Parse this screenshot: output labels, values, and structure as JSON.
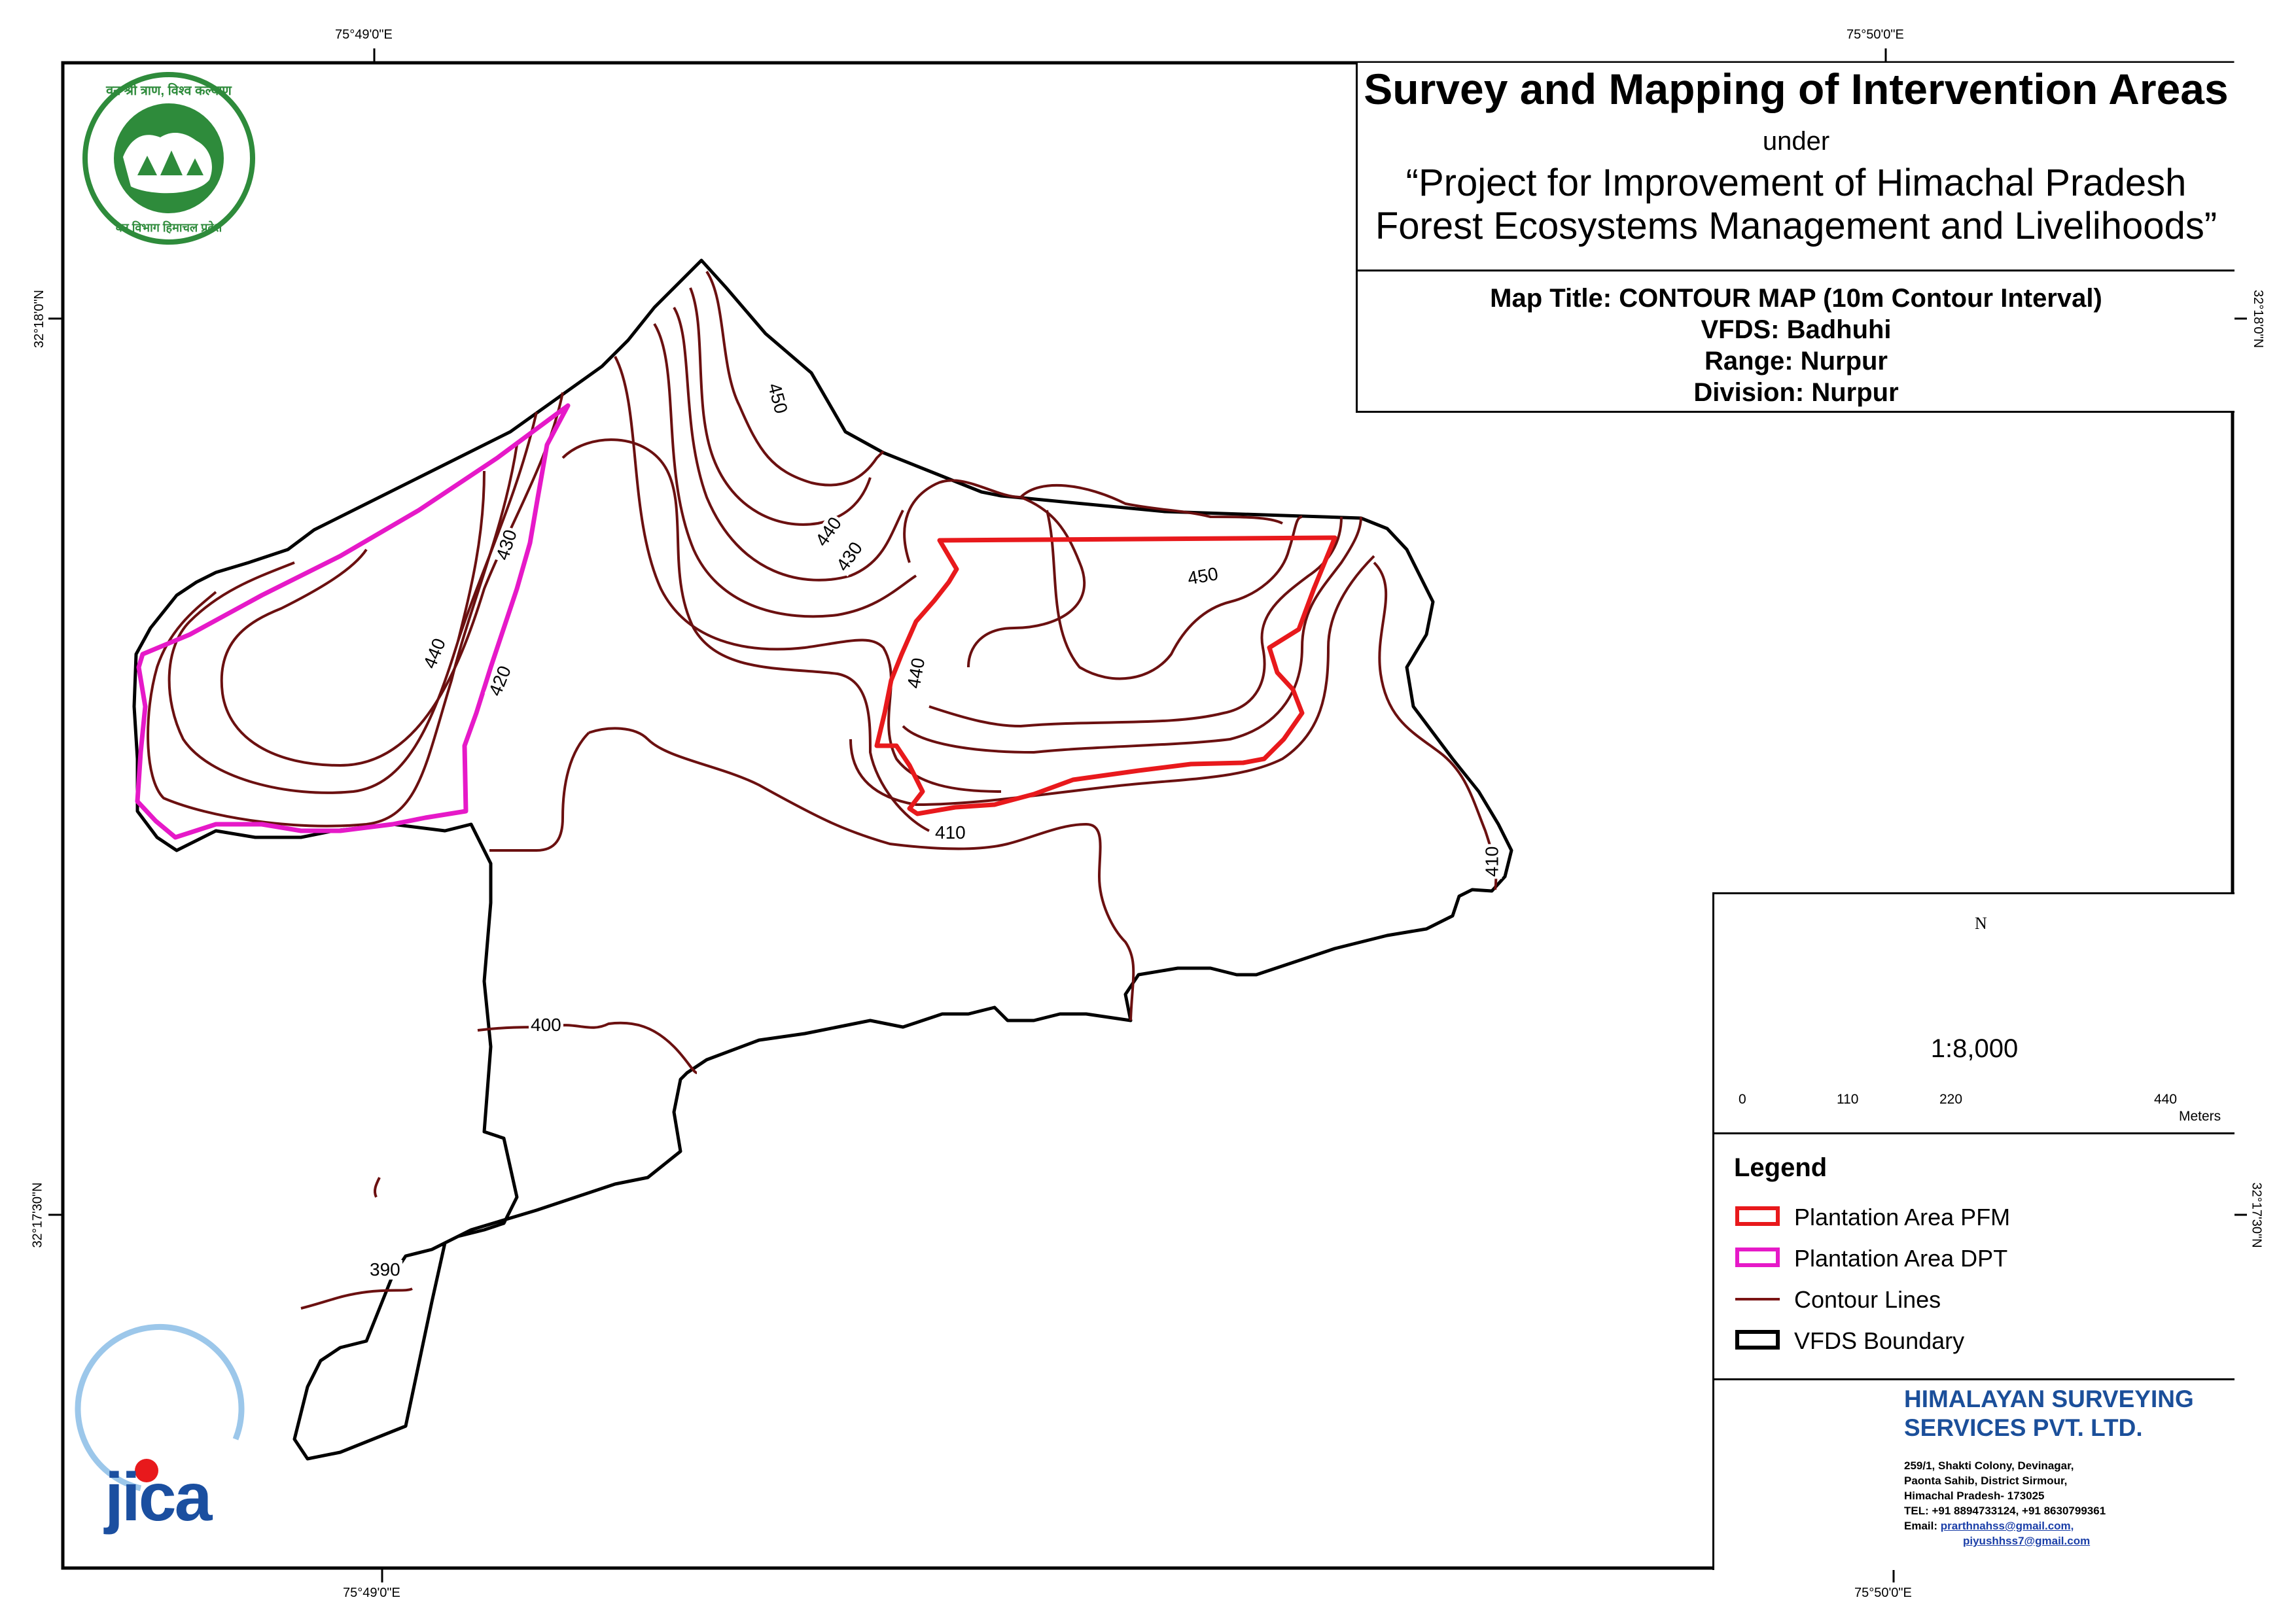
{
  "title": {
    "main": "Survey and Mapping of Intervention Areas",
    "under": "under",
    "project_line1": "“Project for Improvement of Himachal Pradesh",
    "project_line2": "Forest Ecosystems Management and Livelihoods”"
  },
  "map_info": {
    "map_title": "Map Title: CONTOUR MAP (10m Contour Interval)",
    "vfds": "VFDS: Badhuhi",
    "range": "Range: Nurpur",
    "division": "Division: Nurpur"
  },
  "graticule": {
    "top_left": "75°49'0\"E",
    "top_right": "75°50'0\"E",
    "bottom_left": "75°49'0\"E",
    "bottom_right": "75°50'0\"E",
    "left_upper": "32°18'0\"N",
    "left_lower": "32°17'30\"N",
    "right_upper": "32°18'0\"N",
    "right_lower": "32°17'30\"N"
  },
  "contour_labels": [
    "450",
    "440",
    "430",
    "440",
    "420",
    "450",
    "430",
    "440",
    "410",
    "410",
    "400",
    "390"
  ],
  "north_label": "N",
  "scale": {
    "ratio": "1:8,000",
    "ticks": [
      "0",
      "110",
      "220",
      "440"
    ],
    "units": "Meters"
  },
  "legend": {
    "title": "Legend",
    "items": [
      {
        "label": "Plantation Area PFM",
        "color": "#e8191c"
      },
      {
        "label": "Plantation Area DPT",
        "color": "#e619c8"
      },
      {
        "label": "Contour Lines",
        "color": "#7a1414"
      },
      {
        "label": "VFDS Boundary",
        "color": "#000000"
      }
    ]
  },
  "company": {
    "name_line1": "HIMALAYAN SURVEYING",
    "name_line2": "SERVICES PVT. LTD.",
    "address_line1": "259/1, Shakti Colony, Devinagar,",
    "address_line2": "Paonta Sahib, District Sirmour,",
    "address_line3": "Himachal Pradesh- 173025",
    "phone": "TEL: +91 8894733124, +91 8630799361",
    "email_label": "Email:",
    "email1": "prarthnahss@gmail.com,",
    "email2": "piyushhss7@gmail.com"
  },
  "logos": {
    "forest_dept_text": "वन श्री त्राण, विश्व कल्याण",
    "forest_dept_bottom": "वन विभाग हिमाचल प्रदेश",
    "jica": "jica"
  }
}
